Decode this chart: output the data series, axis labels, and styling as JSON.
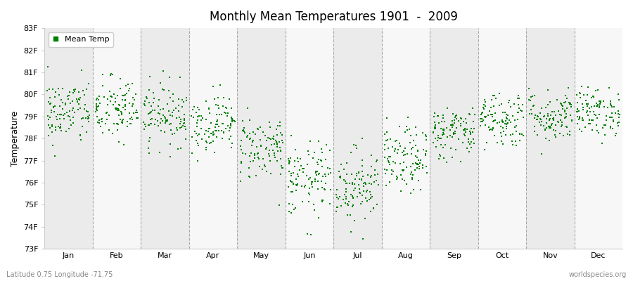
{
  "title": "Monthly Mean Temperatures 1901  -  2009",
  "ylabel": "Temperature",
  "footer_left": "Latitude 0.75 Longitude -71.75",
  "footer_right": "worldspecies.org",
  "legend_label": "Mean Temp",
  "ylim": [
    73,
    83
  ],
  "yticks": [
    73,
    74,
    75,
    76,
    77,
    78,
    79,
    80,
    81,
    82,
    83
  ],
  "ytick_labels": [
    "73F",
    "74F",
    "75F",
    "76F",
    "77F",
    "78F",
    "79F",
    "80F",
    "81F",
    "82F",
    "83F"
  ],
  "months": [
    "Jan",
    "Feb",
    "Mar",
    "Apr",
    "May",
    "Jun",
    "Jul",
    "Aug",
    "Sep",
    "Oct",
    "Nov",
    "Dec"
  ],
  "n_years": 109,
  "random_seed": 42,
  "month_means": [
    79.2,
    79.3,
    79.1,
    78.7,
    77.6,
    76.1,
    75.9,
    77.0,
    78.3,
    78.9,
    79.0,
    79.2
  ],
  "month_stds": [
    0.75,
    0.75,
    0.7,
    0.65,
    0.75,
    0.85,
    0.85,
    0.75,
    0.6,
    0.65,
    0.6,
    0.55
  ],
  "scatter_color": "#008000",
  "marker": "s",
  "marker_size": 2,
  "bg_color": "#ffffff",
  "plot_bg_color": "#ffffff",
  "band_colors": [
    "#ebebeb",
    "#f7f7f7"
  ],
  "dashed_line_color": "#aaaaaa",
  "figsize": [
    9.0,
    4.0
  ],
  "dpi": 100
}
